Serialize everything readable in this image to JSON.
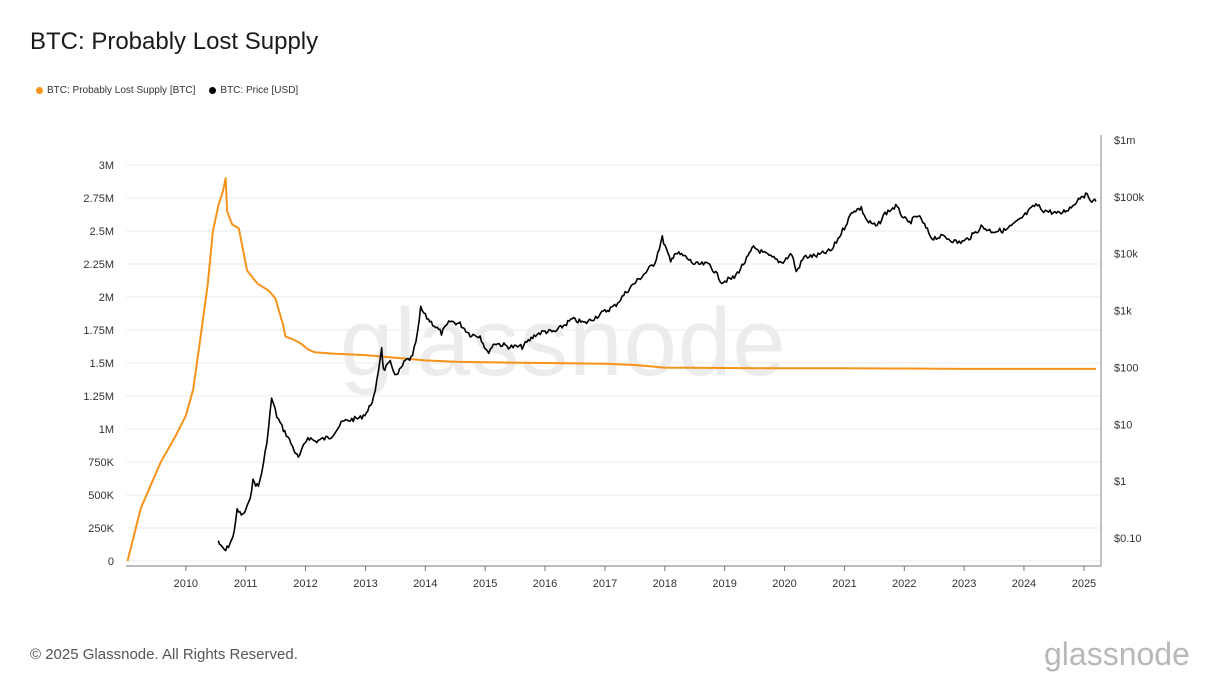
{
  "page": {
    "title": "BTC: Probably Lost Supply",
    "watermark": "glassnode",
    "footer": "© 2025 Glassnode. All Rights Reserved.",
    "brand": "glassnode"
  },
  "colors": {
    "supply": "#f7931a",
    "price": "#000000",
    "grid": "#ebebeb",
    "axis": "#888888"
  },
  "chart_data": {
    "type": "line",
    "title": "BTC: Probably Lost Supply",
    "grid": true,
    "legend_placement": "top-left",
    "x_ticks": [
      "2010",
      "2011",
      "2012",
      "2013",
      "2014",
      "2015",
      "2016",
      "2017",
      "2018",
      "2019",
      "2020",
      "2021",
      "2022",
      "2023",
      "2024",
      "2025"
    ],
    "xlim": [
      "2009-01-01",
      "2025-04-15"
    ],
    "y_left": {
      "ticks": [
        0,
        250000,
        500000,
        750000,
        1000000,
        1250000,
        1500000,
        1750000,
        2000000,
        2250000,
        2500000,
        2750000,
        3000000
      ],
      "tick_labels": [
        "0",
        "250K",
        "500K",
        "750K",
        "1M",
        "1.25M",
        "1.5M",
        "1.75M",
        "2M",
        "2.25M",
        "2.5M",
        "2.75M",
        "3M"
      ],
      "ylim": [
        0,
        3000000
      ]
    },
    "y_right": {
      "scale": "log",
      "ticks": [
        0.1,
        1,
        10,
        100,
        1000,
        10000,
        100000,
        1000000
      ],
      "tick_labels": [
        "$0.10",
        "$1",
        "$10",
        "$100",
        "$1k",
        "$10k",
        "$100k",
        "$1m"
      ],
      "ylim": [
        0.04,
        1000000
      ]
    },
    "series": [
      {
        "name": "BTC: Probably Lost Supply [BTC]",
        "axis": "left",
        "color": "#f7931a",
        "points": [
          [
            "2009-01-10",
            0
          ],
          [
            "2009-04-01",
            400000
          ],
          [
            "2009-08-01",
            750000
          ],
          [
            "2009-11-01",
            950000
          ],
          [
            "2010-01-01",
            1100000
          ],
          [
            "2010-02-15",
            1300000
          ],
          [
            "2010-04-01",
            1700000
          ],
          [
            "2010-05-15",
            2100000
          ],
          [
            "2010-06-15",
            2500000
          ],
          [
            "2010-07-20",
            2700000
          ],
          [
            "2010-08-15",
            2800000
          ],
          [
            "2010-09-01",
            2900000
          ],
          [
            "2010-09-10",
            2650000
          ],
          [
            "2010-10-10",
            2550000
          ],
          [
            "2010-11-20",
            2520000
          ],
          [
            "2011-01-10",
            2200000
          ],
          [
            "2011-03-15",
            2100000
          ],
          [
            "2011-05-20",
            2050000
          ],
          [
            "2011-07-01",
            1990000
          ],
          [
            "2011-08-15",
            1800000
          ],
          [
            "2011-09-01",
            1700000
          ],
          [
            "2011-10-15",
            1680000
          ],
          [
            "2011-12-01",
            1650000
          ],
          [
            "2012-01-20",
            1600000
          ],
          [
            "2012-03-01",
            1580000
          ],
          [
            "2012-07-01",
            1570000
          ],
          [
            "2013-01-01",
            1560000
          ],
          [
            "2013-07-01",
            1540000
          ],
          [
            "2014-01-01",
            1520000
          ],
          [
            "2014-07-01",
            1510000
          ],
          [
            "2015-01-01",
            1505000
          ],
          [
            "2016-01-01",
            1500000
          ],
          [
            "2017-01-01",
            1495000
          ],
          [
            "2017-07-01",
            1485000
          ],
          [
            "2018-01-01",
            1465000
          ],
          [
            "2019-01-01",
            1462000
          ],
          [
            "2020-01-01",
            1460000
          ],
          [
            "2021-01-01",
            1460000
          ],
          [
            "2022-01-01",
            1458000
          ],
          [
            "2023-01-01",
            1455000
          ],
          [
            "2024-01-01",
            1455000
          ],
          [
            "2025-03-15",
            1455000
          ]
        ]
      },
      {
        "name": "BTC: Price [USD]",
        "axis": "right",
        "color": "#000000",
        "points": [
          [
            "2010-07-18",
            0.09
          ],
          [
            "2010-08-01",
            0.07
          ],
          [
            "2010-09-01",
            0.06
          ],
          [
            "2010-10-15",
            0.1
          ],
          [
            "2010-11-10",
            0.3
          ],
          [
            "2010-12-15",
            0.25
          ],
          [
            "2011-01-20",
            0.4
          ],
          [
            "2011-02-15",
            1.0
          ],
          [
            "2011-03-20",
            0.8
          ],
          [
            "2011-04-20",
            2.0
          ],
          [
            "2011-05-20",
            8.0
          ],
          [
            "2011-06-08",
            29
          ],
          [
            "2011-07-10",
            14
          ],
          [
            "2011-08-10",
            9
          ],
          [
            "2011-09-15",
            6
          ],
          [
            "2011-10-15",
            4
          ],
          [
            "2011-11-18",
            2.5
          ],
          [
            "2011-12-20",
            4
          ],
          [
            "2012-01-15",
            6
          ],
          [
            "2012-03-01",
            5
          ],
          [
            "2012-06-01",
            6
          ],
          [
            "2012-08-15",
            11
          ],
          [
            "2012-10-01",
            12
          ],
          [
            "2012-12-01",
            13
          ],
          [
            "2013-01-15",
            17
          ],
          [
            "2013-03-01",
            35
          ],
          [
            "2013-04-10",
            230
          ],
          [
            "2013-04-20",
            90
          ],
          [
            "2013-06-01",
            120
          ],
          [
            "2013-07-10",
            70
          ],
          [
            "2013-09-01",
            130
          ],
          [
            "2013-10-15",
            150
          ],
          [
            "2013-11-15",
            400
          ],
          [
            "2013-12-04",
            1100
          ],
          [
            "2014-01-01",
            800
          ],
          [
            "2014-02-25",
            550
          ],
          [
            "2014-04-10",
            400
          ],
          [
            "2014-06-01",
            650
          ],
          [
            "2014-08-01",
            580
          ],
          [
            "2014-10-01",
            380
          ],
          [
            "2014-12-01",
            360
          ],
          [
            "2015-01-14",
            180
          ],
          [
            "2015-03-01",
            270
          ],
          [
            "2015-06-01",
            230
          ],
          [
            "2015-08-15",
            230
          ],
          [
            "2015-11-05",
            380
          ],
          [
            "2016-01-01",
            430
          ],
          [
            "2016-03-01",
            420
          ],
          [
            "2016-06-15",
            700
          ],
          [
            "2016-09-01",
            600
          ],
          [
            "2016-12-31",
            960
          ],
          [
            "2017-03-01",
            1200
          ],
          [
            "2017-06-01",
            2500
          ],
          [
            "2017-09-01",
            4500
          ],
          [
            "2017-11-01",
            7000
          ],
          [
            "2017-12-17",
            19000
          ],
          [
            "2018-02-06",
            7000
          ],
          [
            "2018-03-01",
            10500
          ],
          [
            "2018-05-01",
            9000
          ],
          [
            "2018-07-01",
            6500
          ],
          [
            "2018-10-01",
            6500
          ],
          [
            "2018-12-15",
            3200
          ],
          [
            "2019-03-01",
            3800
          ],
          [
            "2019-05-15",
            8000
          ],
          [
            "2019-06-26",
            13000
          ],
          [
            "2019-09-01",
            10000
          ],
          [
            "2019-12-15",
            7000
          ],
          [
            "2020-02-15",
            10000
          ],
          [
            "2020-03-13",
            4800
          ],
          [
            "2020-05-01",
            8800
          ],
          [
            "2020-07-15",
            9200
          ],
          [
            "2020-10-15",
            11500
          ],
          [
            "2020-12-31",
            29000
          ],
          [
            "2021-02-21",
            57000
          ],
          [
            "2021-04-14",
            63000
          ],
          [
            "2021-05-20",
            37000
          ],
          [
            "2021-07-20",
            30000
          ],
          [
            "2021-09-05",
            51000
          ],
          [
            "2021-11-10",
            68000
          ],
          [
            "2022-01-24",
            34000
          ],
          [
            "2022-03-28",
            47000
          ],
          [
            "2022-06-18",
            19000
          ],
          [
            "2022-09-01",
            20000
          ],
          [
            "2022-11-21",
            15800
          ],
          [
            "2023-01-01",
            16500
          ],
          [
            "2023-03-01",
            22000
          ],
          [
            "2023-04-15",
            30000
          ],
          [
            "2023-06-15",
            25000
          ],
          [
            "2023-09-10",
            25800
          ],
          [
            "2023-12-01",
            38000
          ],
          [
            "2024-03-14",
            73000
          ],
          [
            "2024-05-01",
            58000
          ],
          [
            "2024-08-05",
            50000
          ],
          [
            "2024-10-15",
            66000
          ],
          [
            "2024-12-17",
            106000
          ],
          [
            "2025-01-20",
            105000
          ],
          [
            "2025-02-28",
            84000
          ],
          [
            "2025-03-15",
            83000
          ]
        ]
      }
    ]
  }
}
